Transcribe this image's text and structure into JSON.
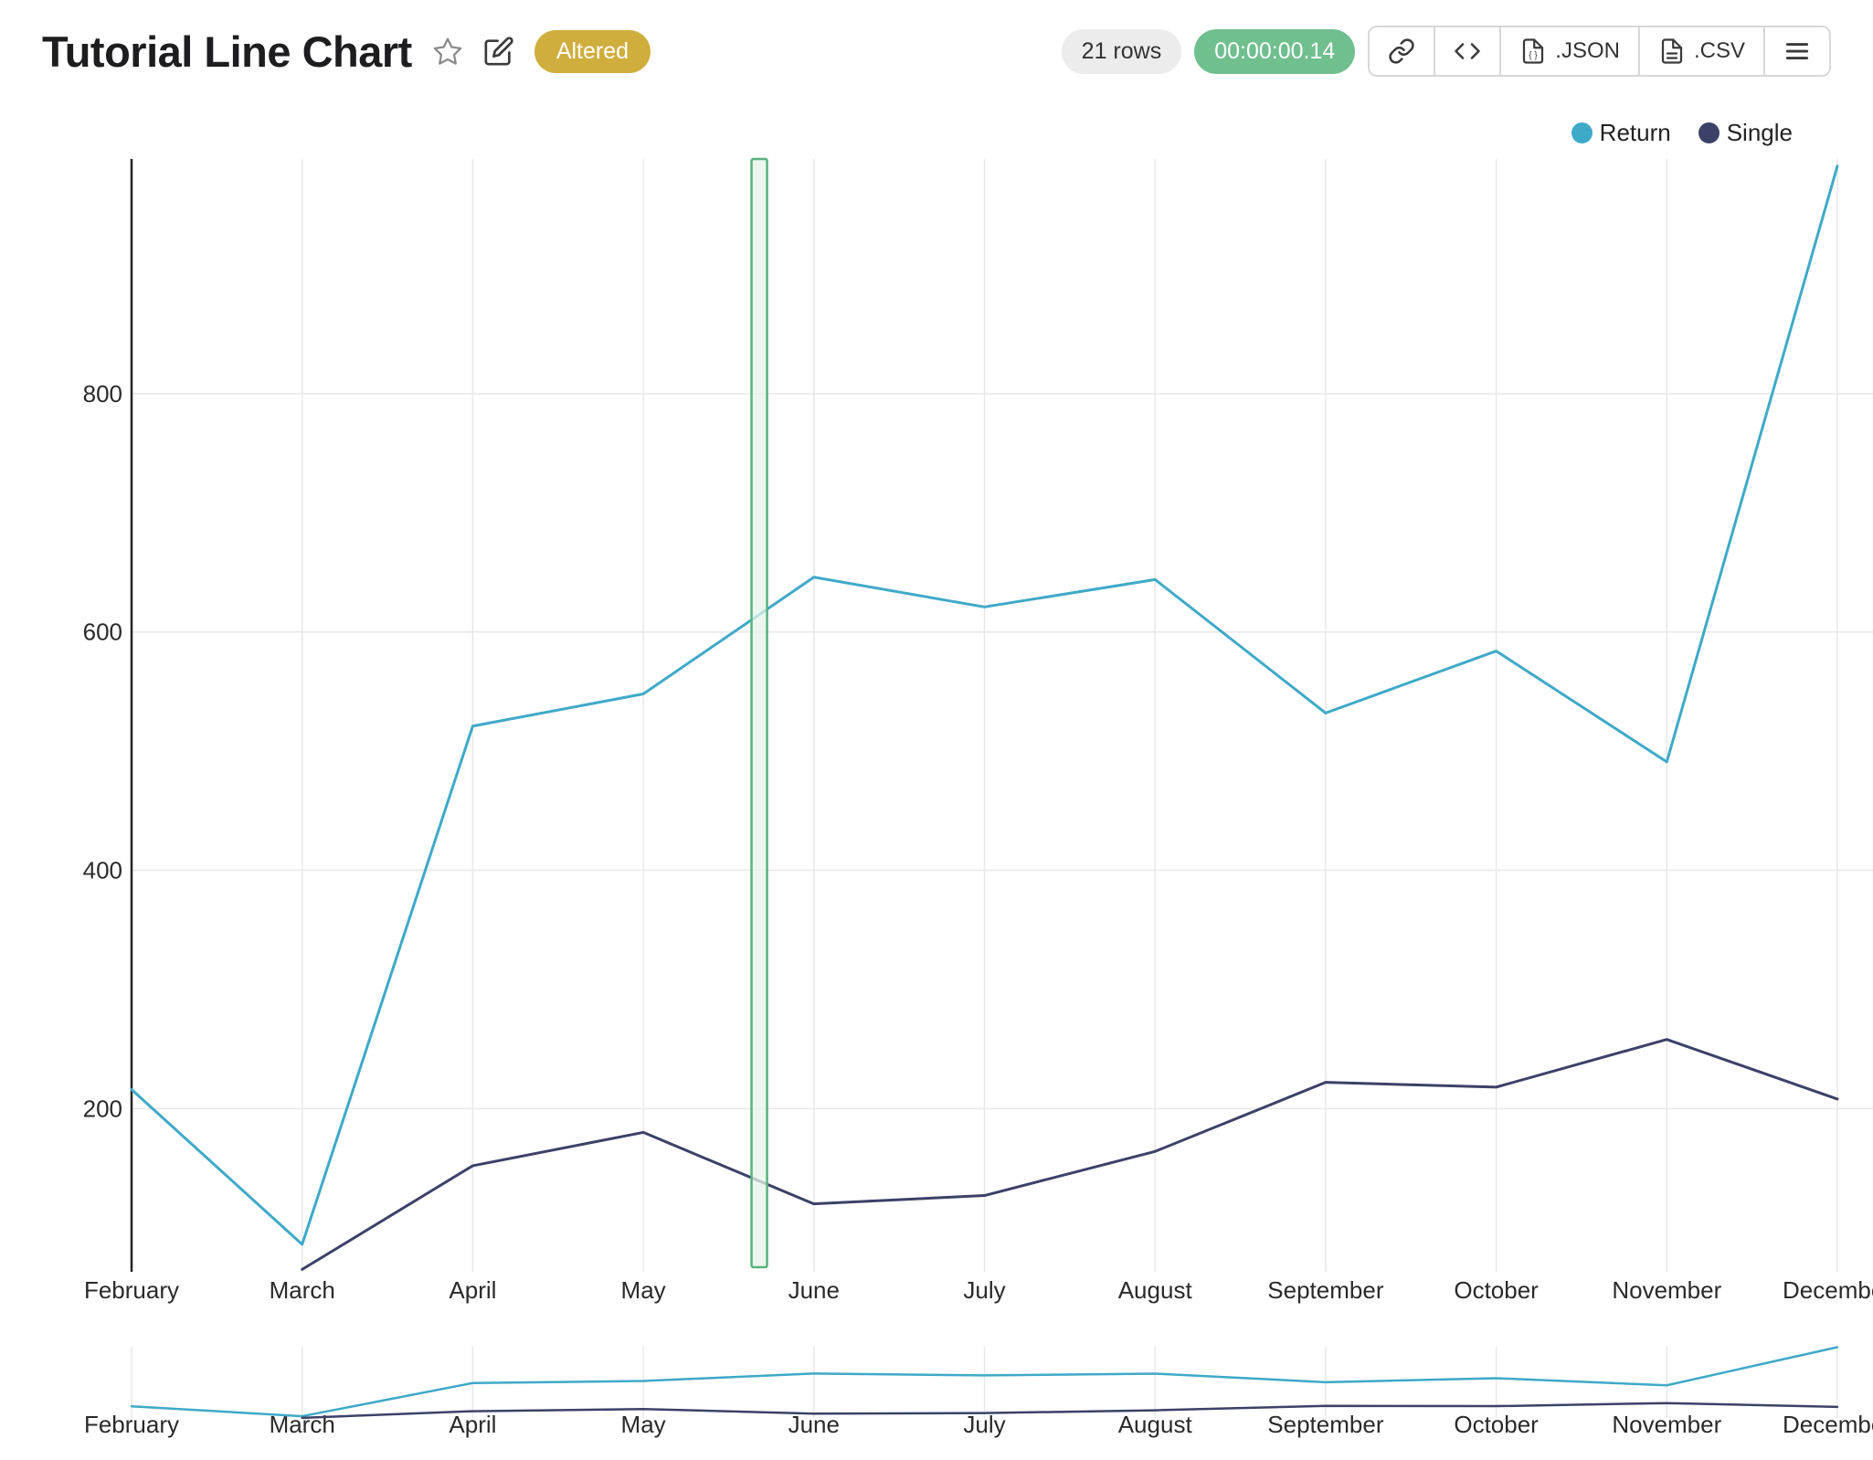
{
  "header": {
    "title": "Tutorial Line Chart",
    "status_badge": "Altered",
    "rows_count": "21 rows",
    "elapsed_time": "00:00:00.14",
    "export_json_label": ".JSON",
    "export_csv_label": ".CSV"
  },
  "legend": {
    "items": [
      {
        "label": "Return",
        "color": "#3fa9c8"
      },
      {
        "label": "Single",
        "color": "#3c4168"
      }
    ]
  },
  "colors": {
    "return_series": "#3fa9c8",
    "single_series": "#3c4168",
    "status_badge_bg": "#cfae3e",
    "elapsed_pill_bg": "#70bf8e",
    "rows_pill_bg": "#ececec",
    "grid_line": "#e8e8e8",
    "axis_line": "#222222",
    "tick_label": "#2a2a2a",
    "highlight_band_fill": "#e6f4e9",
    "highlight_band_border": "#58b27c"
  },
  "chart_data": {
    "type": "line",
    "title": "Tutorial Line Chart",
    "x_categories": [
      "February",
      "March",
      "April",
      "May",
      "June",
      "July",
      "August",
      "September",
      "October",
      "November",
      "December"
    ],
    "series": [
      {
        "name": "Return",
        "color": "#3fa9c8",
        "values": [
          216,
          86,
          521,
          548,
          646,
          621,
          644,
          532,
          584,
          491,
          991
        ]
      },
      {
        "name": "Single",
        "color": "#3c4168",
        "values": [
          null,
          65,
          152,
          180,
          120,
          127,
          164,
          222,
          218,
          258,
          208
        ]
      }
    ],
    "y_ticks": [
      200,
      400,
      600,
      800
    ],
    "y_range": [
      63,
      997
    ],
    "grid": true,
    "legend_position": "top-right",
    "highlight_band": {
      "between": [
        "May",
        "June"
      ],
      "x_index": 3.68
    },
    "navigator": true
  }
}
